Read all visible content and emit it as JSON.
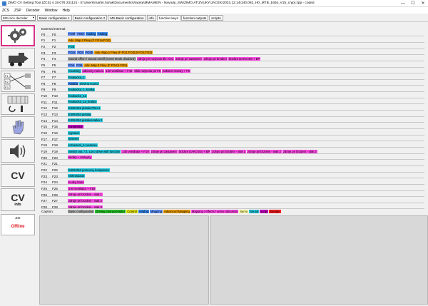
{
  "window": {
    "title": "ZIMO CV Setting Tool (ZCS) 4.19.076 231121 - E:\\Users\\martin.horak\\Documents\\Vlaciky\\MMAMEIN - Navody_SW\\ZIMO.AT\\ZVUKY\\JACEK\\2023.12.14\\140.062_H0_MTB_16bit_V15_crypt.zpp - coded",
    "minimize": "—",
    "maximize": "☐",
    "close": "✕"
  },
  "menu": [
    "ZCS",
    "ZSP",
    "Decoder",
    "Window",
    "Help"
  ],
  "toolbar": {
    "decoder_select": "MS-loco decoder",
    "tabs": [
      "Basic configuration 1",
      "Basic configuration 2",
      "MS-Basic configuration",
      "info",
      "function keys",
      "function outputs",
      "scripts"
    ],
    "active_tab": 4
  },
  "sidebar": {
    "icons": [
      "gears-icon",
      "loco-icon",
      "function-mapping-icon",
      "cv-table-icon",
      "tools-icon",
      "hand-icon",
      "sound-icon"
    ],
    "cv_label": "CV",
    "cv_info_label": "CV",
    "cv_info_sub": "info",
    "zsi_label": "ZSI",
    "status": "Offline"
  },
  "fkeys": {
    "header": "External Internal",
    "colors": {
      "basic": "#b0b0b0",
      "driving": "#2dcc2d",
      "control": "#e6e600",
      "analog": "#3c8cf0",
      "mapping": "#6496ff",
      "advanced": "#f0a000",
      "effects": "#ff4ce6",
      "servo": "#ffffa0",
      "sound": "#28c8dc",
      "script": "#c800c8",
      "sample": "#ff1e1e"
    },
    "rows": [
      {
        "name": "F0",
        "cv": "F0",
        "tags": [
          [
            "FO0f",
            "mapping"
          ],
          [
            "FO0r",
            "mapping"
          ],
          [
            "Analog",
            "analog"
          ],
          [
            "Analog",
            "analog"
          ]
        ]
      },
      {
        "name": "F1",
        "cv": "F1",
        "tags": [
          [
            "Adv. Map.2 Fkey (F FO1a;FO2)",
            "advanced"
          ]
        ]
      },
      {
        "name": "F2",
        "cv": "F2",
        "tags": [
          [
            "FO3",
            "sound"
          ]
        ]
      },
      {
        "name": "F3",
        "cv": "F3",
        "tags": [
          [
            "FO1r",
            "mapping"
          ],
          [
            "FO3",
            "mapping"
          ],
          [
            "FO3b",
            "mapping"
          ],
          [
            "Adv. Map.1 Fkey (F FO1;FO3);b FO2;FO3)",
            "advanced"
          ]
        ]
      },
      {
        "name": "F4",
        "cv": "F4",
        "tags": [
          [
            "Sound off/on / Sound on/off (Invert Mode disabled)",
            "basic"
          ],
          [
            "zdroje pri rozjezdu dle ACC",
            "effects"
          ],
          [
            "zdroje pri zastaveni",
            "effects"
          ],
          [
            "zdroje pri brzdeni",
            "effects"
          ],
          [
            "brzdice DAKO BS + BP",
            "effects"
          ]
        ]
      },
      {
        "name": "F5",
        "cv": "F5",
        "tags": [
          [
            "FO4",
            "mapping"
          ],
          [
            "FO5",
            "mapping"
          ],
          [
            "Adv. Map.3 Fkey (F FO4;b FO5)",
            "advanced"
          ]
        ]
      },
      {
        "name": "F6",
        "cv": "F6",
        "tags": [
          [
            "Coasting",
            "sound"
          ],
          [
            "odbocky nahoru",
            "effects"
          ],
          [
            "140 ventilator + F19",
            "effects"
          ],
          [
            "blok rozjezdu pri F6",
            "effects"
          ],
          [
            "nakonci motory + F5",
            "effects"
          ]
        ]
      },
      {
        "name": "F7",
        "cv": "F7",
        "tags": [
          [
            "houkacka_1",
            "sound"
          ]
        ]
      },
      {
        "name": "F8",
        "cv": "F8",
        "tags": [
          [
            "Analog",
            "analog"
          ],
          [
            "Driving sound",
            "sound"
          ]
        ]
      },
      {
        "name": "F9",
        "cv": "F9",
        "tags": [
          [
            "houkacka_1_kratka",
            "sound"
          ]
        ]
      },
      {
        "name": "F10",
        "cv": "F10",
        "tags": [
          [
            "houkacka_1a",
            "sound"
          ]
        ]
      },
      {
        "name": "F11",
        "cv": "F11",
        "tags": [
          [
            "houkacka_1a_kratka",
            "sound"
          ]
        ]
      },
      {
        "name": "F12",
        "cv": "F12",
        "tags": [
          [
            "E499.062 pistala PBU 2",
            "sound"
          ]
        ]
      },
      {
        "name": "F13",
        "cv": "F13",
        "tags": [
          [
            "E499.062 pistala",
            "sound"
          ]
        ]
      },
      {
        "name": "F14",
        "cv": "F14",
        "tags": [
          [
            "E499.062 pistala kratka 2",
            "sound"
          ]
        ]
      },
      {
        "name": "F15",
        "cv": "F15",
        "tags": [
          [
            "kompresor",
            "script"
          ]
        ]
      },
      {
        "name": "F16",
        "cv": "F16",
        "tags": [
          [
            "vypravci",
            "sound"
          ]
        ]
      },
      {
        "name": "F17",
        "cv": "F17",
        "tags": [
          [
            "sesenni",
            "sound"
          ]
        ]
      },
      {
        "name": "F18",
        "cv": "F18",
        "tags": [
          [
            "rozvesení_1+vesenia",
            "sound"
          ]
        ]
      },
      {
        "name": "F19",
        "cv": "F19",
        "tags": [
          [
            "Switch out. / 2. Loco drive with function",
            "sound"
          ],
          [
            "140 ventilator + F19",
            "effects"
          ],
          [
            "zdroje pri zastaveni",
            "effects"
          ],
          [
            "brzdice DAKO BS + BP",
            "effects"
          ],
          [
            "zdroje pri brzdeni - vlak 1",
            "effects"
          ],
          [
            "zdroje pri brzdeni - vlak 2",
            "effects"
          ],
          [
            "zdroje pri brzdeni - vlak 3",
            "effects"
          ]
        ]
      },
      {
        "name": "F20",
        "cv": "F20",
        "tags": [
          [
            "skolky + stoluyky",
            "effects"
          ]
        ]
      },
      {
        "name": "F21",
        "cv": "F21",
        "tags": []
      },
      {
        "name": "F22",
        "cv": "F22",
        "tags": [
          [
            "E499.062 pomocny kompresor",
            "sound"
          ]
        ]
      },
      {
        "name": "F23",
        "cv": "F23",
        "tags": [
          [
            "viskrasdaus",
            "sound"
          ]
        ]
      },
      {
        "name": "F24",
        "cv": "F24",
        "tags": [
          [
            "mulky halet",
            "effects"
          ]
        ]
      },
      {
        "name": "F25",
        "cv": "F25",
        "tags": [
          [
            "140 ventilator + F19",
            "effects"
          ]
        ]
      },
      {
        "name": "F26",
        "cv": "F26",
        "tags": [
          [
            "zdroje pri brzdeni - vlak 1",
            "effects"
          ]
        ]
      },
      {
        "name": "F27",
        "cv": "F27",
        "tags": [
          [
            "zdroje pri brzdeni - vlak 2",
            "effects"
          ]
        ]
      },
      {
        "name": "F28",
        "cv": "F28",
        "tags": [
          [
            "zdroje pri brzdeni - vlak 3",
            "effects"
          ]
        ]
      }
    ]
  },
  "caption": {
    "label": "Caption:",
    "items": [
      [
        "Basic configuration",
        "basic"
      ],
      [
        "Driving characteristics",
        "driving"
      ],
      [
        "Control",
        "control"
      ],
      [
        "Analog",
        "analog"
      ],
      [
        "Mapping",
        "mapping"
      ],
      [
        "Advanced Mapping",
        "advanced"
      ],
      [
        "Mapping / effects / servo allocation",
        "effects"
      ],
      [
        "Servo",
        "servo"
      ],
      [
        "Sound",
        "sound"
      ],
      [
        "script",
        "script"
      ],
      [
        "Sample",
        "sample"
      ]
    ]
  }
}
